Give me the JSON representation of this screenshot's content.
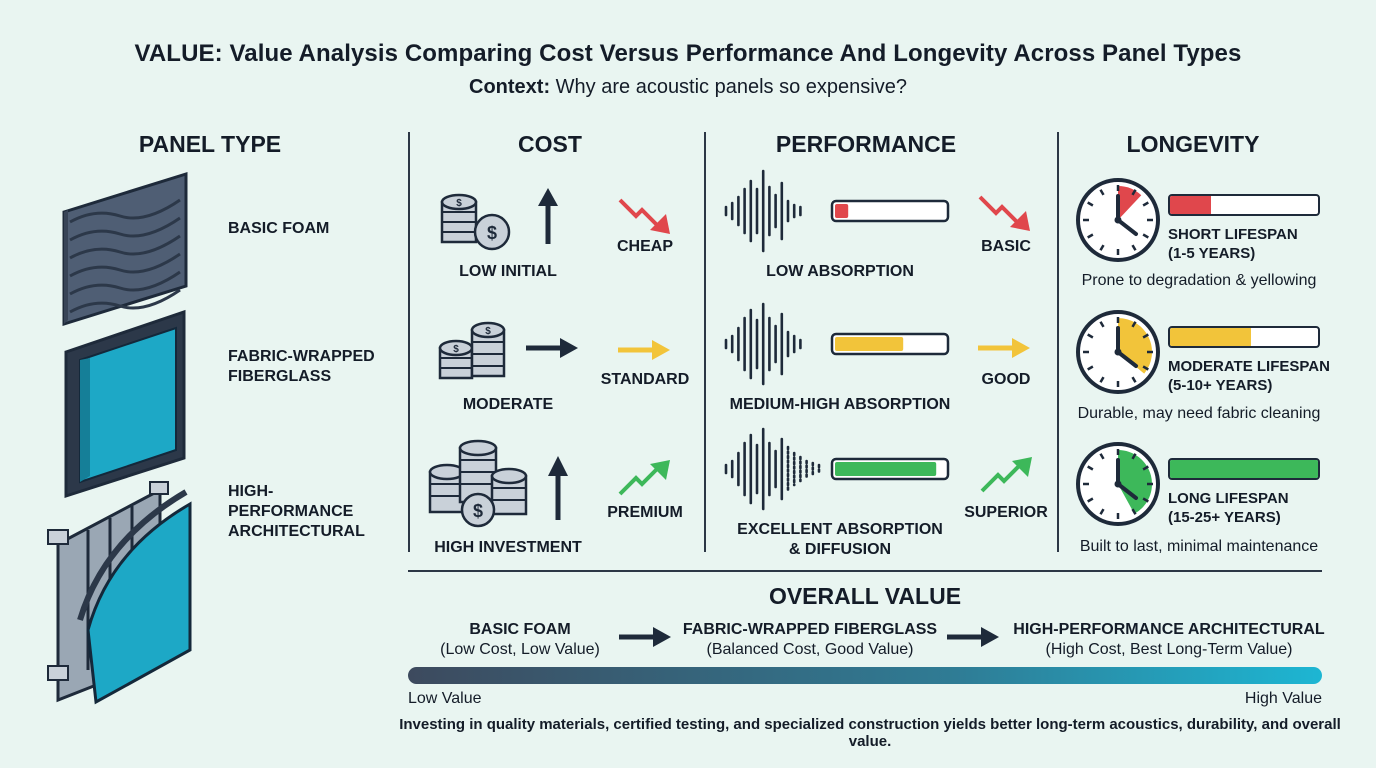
{
  "header": {
    "title": "VALUE: Value Analysis Comparing Cost Versus Performance And Longevity Across Panel Types",
    "context_label": "Context:",
    "context_text": "Why are acoustic panels so expensive?"
  },
  "columns": {
    "panel_type": "PANEL TYPE",
    "cost": "COST",
    "performance": "PERFORMANCE",
    "longevity": "LONGEVITY"
  },
  "rows": [
    {
      "panel": "BASIC FOAM",
      "cost_label": "LOW INITIAL",
      "cost_tier": "CHEAP",
      "perf_label": "LOW ABSORPTION",
      "perf_tier": "BASIC",
      "perf_level": 0.12,
      "life_level": 0.28,
      "life_label": "SHORT LIFESPAN",
      "life_years": "(1-5 YEARS)",
      "life_note": "Prone to degradation & yellowing",
      "color": "#e0474c"
    },
    {
      "panel": "FABRIC-WRAPPED FIBERGLASS",
      "cost_label": "MODERATE",
      "cost_tier": "STANDARD",
      "perf_label": "MEDIUM-HIGH ABSORPTION",
      "perf_tier": "GOOD",
      "perf_level": 0.62,
      "life_level": 0.55,
      "life_label": "MODERATE LIFESPAN",
      "life_years": "(5-10+ YEARS)",
      "life_note": "Durable, may need fabric cleaning",
      "color": "#f2c43a"
    },
    {
      "panel": "HIGH-PERFORMANCE ARCHITECTURAL",
      "cost_label": "HIGH INVESTMENT",
      "cost_tier": "PREMIUM",
      "perf_label": "EXCELLENT ABSORPTION & DIFFUSION",
      "perf_tier": "SUPERIOR",
      "perf_level": 0.92,
      "life_level": 1.0,
      "life_label": "LONG LIFESPAN",
      "life_years": "(15-25+ YEARS)",
      "life_note": "Built to last, minimal maintenance",
      "color": "#3db85a"
    }
  ],
  "overall": {
    "title": "OVERALL VALUE",
    "steps": [
      {
        "name": "BASIC FOAM",
        "detail": "(Low Cost, Low Value)"
      },
      {
        "name": "FABRIC-WRAPPED FIBERGLASS",
        "detail": "(Balanced Cost, Good Value)"
      },
      {
        "name": "HIGH-PERFORMANCE ARCHITECTURAL",
        "detail": "(High Cost, Best Long-Term Value)"
      }
    ],
    "scale_low": "Low Value",
    "scale_high": "High Value"
  },
  "footer": "Investing in quality materials, certified testing, and specialized construction yields better long-term acoustics, durability, and overall value.",
  "icons": {
    "coin": "dollar-coin-icon",
    "arrow": "trend-arrow-icon",
    "wave": "sound-wave-icon",
    "clock": "clock-icon",
    "panel": "acoustic-panel-icon"
  }
}
